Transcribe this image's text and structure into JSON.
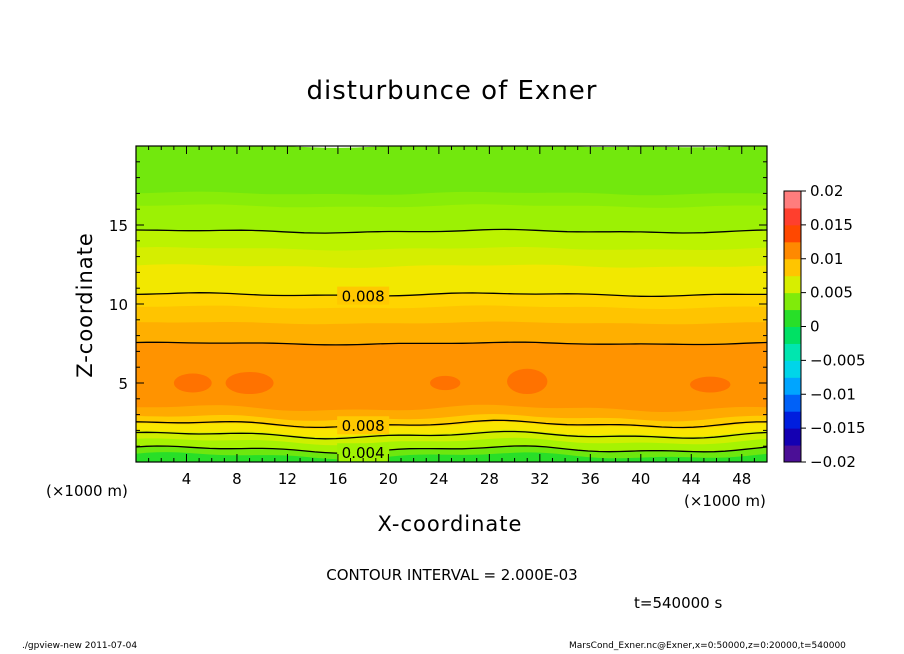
{
  "chart_data": {
    "type": "heatmap",
    "title": "disturbunce of Exner",
    "xlabel": "X-coordinate",
    "ylabel": "Z-coordinate",
    "x_unit_left": "(×1000 m)",
    "x_unit_right": "(×1000 m)",
    "xlim": [
      0,
      50
    ],
    "ylim": [
      0,
      20
    ],
    "x_ticks": [
      4,
      8,
      12,
      16,
      20,
      24,
      28,
      32,
      36,
      40,
      44,
      48
    ],
    "x_tick_labels": [
      "4",
      "8",
      "12",
      "16",
      "20",
      "24",
      "28",
      "32",
      "36",
      "40",
      "44",
      "48"
    ],
    "y_ticks": [
      5,
      10,
      15
    ],
    "y_tick_labels": [
      "5",
      "10",
      "15"
    ],
    "colorbar": {
      "ticks": [
        0.02,
        0.015,
        0.01,
        0.005,
        0,
        -0.005,
        -0.01,
        -0.015,
        -0.02
      ],
      "tick_labels": [
        "0.02",
        "0.015",
        "0.01",
        "0.005",
        "0",
        "−0.005",
        "−0.01",
        "−0.015",
        "−0.02"
      ],
      "range": [
        -0.02,
        0.02
      ],
      "step": 0.0025
    },
    "bands": [
      {
        "z_top": 0.4,
        "value": 0.00125
      },
      {
        "z_top": 0.8,
        "value": 0.00325
      },
      {
        "z_top": 1.3,
        "value": 0.00475
      },
      {
        "z_top": 1.8,
        "value": 0.006
      },
      {
        "z_top": 2.3,
        "value": 0.0073
      },
      {
        "z_top": 2.8,
        "value": 0.0085
      },
      {
        "z_top": 3.4,
        "value": 0.0098
      },
      {
        "z_top": 7.5,
        "value": 0.0108
      },
      {
        "z_top": 8.8,
        "value": 0.0096
      },
      {
        "z_top": 9.8,
        "value": 0.0088
      },
      {
        "z_top": 10.6,
        "value": 0.0082
      },
      {
        "z_top": 12.4,
        "value": 0.0071
      },
      {
        "z_top": 13.5,
        "value": 0.0062
      },
      {
        "z_top": 14.6,
        "value": 0.0054
      },
      {
        "z_top": 16.2,
        "value": 0.0045
      },
      {
        "z_top": 17.0,
        "value": 0.004
      },
      {
        "z_top": 20.0,
        "value": 0.0034
      }
    ],
    "contours": [
      {
        "z": 0.8,
        "value": 0.004,
        "label": "0.004",
        "label_x": 18
      },
      {
        "z": 1.7,
        "value": 0.006
      },
      {
        "z": 2.4,
        "value": 0.008,
        "label": "0.008",
        "label_x": 18
      },
      {
        "z": 7.5,
        "value": 0.01
      },
      {
        "z": 10.6,
        "value": 0.008,
        "label": "0.008",
        "label_x": 18
      },
      {
        "z": 14.6,
        "value": 0.006
      }
    ],
    "blobs": [
      {
        "x": 4.5,
        "z": 5.0,
        "rx": 1.5,
        "rz": 0.6
      },
      {
        "x": 9.0,
        "z": 5.0,
        "rx": 1.9,
        "rz": 0.7
      },
      {
        "x": 24.5,
        "z": 5.0,
        "rx": 1.2,
        "rz": 0.45
      },
      {
        "x": 31.0,
        "z": 5.1,
        "rx": 1.6,
        "rz": 0.8
      },
      {
        "x": 45.5,
        "z": 4.9,
        "rx": 1.6,
        "rz": 0.5
      }
    ]
  },
  "annotations": {
    "contour_interval": "CONTOUR INTERVAL = 2.000E-03",
    "time": "t=540000  s"
  },
  "footer": {
    "left": "./gpview-new   2011-07-04",
    "right": "MarsCond_Exner.nc@Exner,x=0:50000,z=0:20000,t=540000"
  }
}
